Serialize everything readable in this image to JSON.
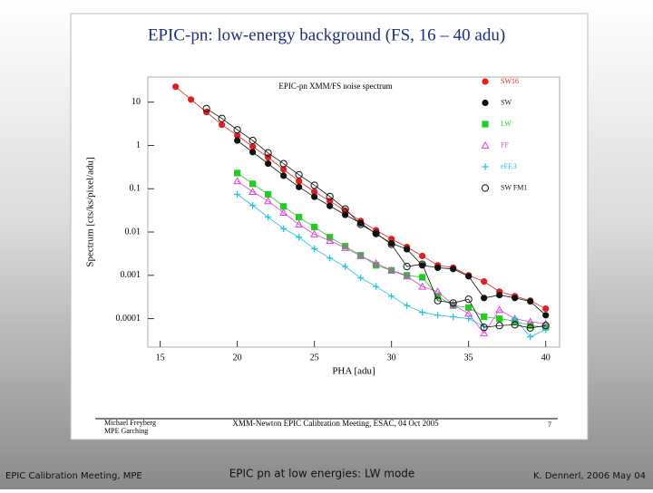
{
  "chart_data": {
    "type": "line",
    "title": "EPIC-pn: low-energy background (FS, 16 – 40 adu)",
    "subtitle": "EPIC-pn XMM/FS noise spectrum",
    "x_label": "PHA [adu]",
    "y_label": "Spectrum [cts/ks/pixel/adu]",
    "x": [
      16,
      17,
      18,
      19,
      20,
      21,
      22,
      23,
      24,
      25,
      26,
      27,
      28,
      29,
      30,
      31,
      32,
      33,
      34,
      35,
      36,
      37,
      38,
      39,
      40
    ],
    "series": [
      {
        "name": "SW16",
        "color": "#e02020",
        "marker": "circle",
        "values": [
          22.7,
          11.5,
          5.9,
          3.0,
          1.7,
          0.94,
          0.53,
          0.28,
          0.15,
          0.085,
          0.052,
          0.031,
          0.018,
          0.011,
          0.0069,
          0.0045,
          0.0028,
          0.0017,
          0.0015,
          0.001,
          0.00072,
          0.00042,
          0.00033,
          0.00026,
          0.00017
        ]
      },
      {
        "name": "SW",
        "color": "#111111",
        "marker": "circle",
        "values": [
          null,
          null,
          null,
          null,
          1.3,
          0.7,
          0.38,
          0.2,
          0.11,
          0.065,
          0.04,
          0.025,
          0.016,
          0.009,
          0.0055,
          0.004,
          0.0017,
          0.0015,
          0.0014,
          0.00095,
          0.0003,
          0.00035,
          0.0003,
          0.00025,
          0.00012
        ]
      },
      {
        "name": "LW",
        "color": "#22cc22",
        "marker": "square",
        "values": [
          null,
          null,
          null,
          null,
          0.23,
          0.13,
          0.074,
          0.039,
          0.022,
          0.013,
          0.0076,
          0.0047,
          0.0029,
          0.0017,
          0.0013,
          0.001,
          0.0009,
          0.00033,
          0.0002,
          0.00018,
          0.00011,
          0.0001,
          8.7e-05,
          6.9e-05,
          6.3e-05
        ]
      },
      {
        "name": "FF",
        "color": "#e040e0",
        "marker": "triangle",
        "values": [
          null,
          null,
          null,
          null,
          0.15,
          0.085,
          0.052,
          0.028,
          0.015,
          0.0089,
          0.0063,
          0.0043,
          0.0028,
          0.0019,
          0.0013,
          0.00095,
          0.00055,
          0.00042,
          0.00021,
          0.00013,
          4.6e-05,
          0.00016,
          0.0001,
          8.5e-05,
          7.6e-05
        ]
      },
      {
        "name": "eFF.3",
        "color": "#20c0e0",
        "marker": "plus",
        "values": [
          null,
          null,
          null,
          null,
          0.074,
          0.041,
          0.022,
          0.012,
          0.0076,
          0.0041,
          0.0025,
          0.0016,
          0.00087,
          0.00055,
          0.00033,
          0.0002,
          0.00014,
          0.00012,
          0.00011,
          0.0001,
          6.6e-05,
          null,
          0.0001,
          3.8e-05,
          5.6e-05
        ]
      },
      {
        "name": "SW FM1",
        "color": "#111111",
        "marker": "open-circle",
        "values": [
          null,
          null,
          7.1,
          4.2,
          2.3,
          1.3,
          0.67,
          0.38,
          0.21,
          0.12,
          0.066,
          0.034,
          0.015,
          0.0093,
          0.0052,
          0.0016,
          0.0018,
          0.00026,
          0.00023,
          0.00028,
          6.3e-05,
          6.9e-05,
          7.2e-05,
          6.1e-05,
          6.9e-05
        ]
      }
    ],
    "xlim": [
      14.2,
      40.9
    ],
    "xticks": [
      15,
      20,
      25,
      30,
      35,
      40
    ],
    "ylim": [
      2.2e-05,
      38
    ],
    "yticks": [
      0.0001,
      0.001,
      0.01,
      0.1,
      1,
      10
    ],
    "y_scale": "log",
    "legend": "right"
  },
  "slide": {
    "author": [
      "Michael Freyberg",
      "MPE Garching"
    ],
    "meeting": "XMM-Newton EPIC Calibration Meeting, ESAC, 04 Oct 2005",
    "page": "7"
  },
  "footer": {
    "left": "EPIC Calibration Meeting, MPE",
    "center": "EPIC pn at low energies: LW mode",
    "right": "K. Dennerl, 2006 May 04"
  }
}
